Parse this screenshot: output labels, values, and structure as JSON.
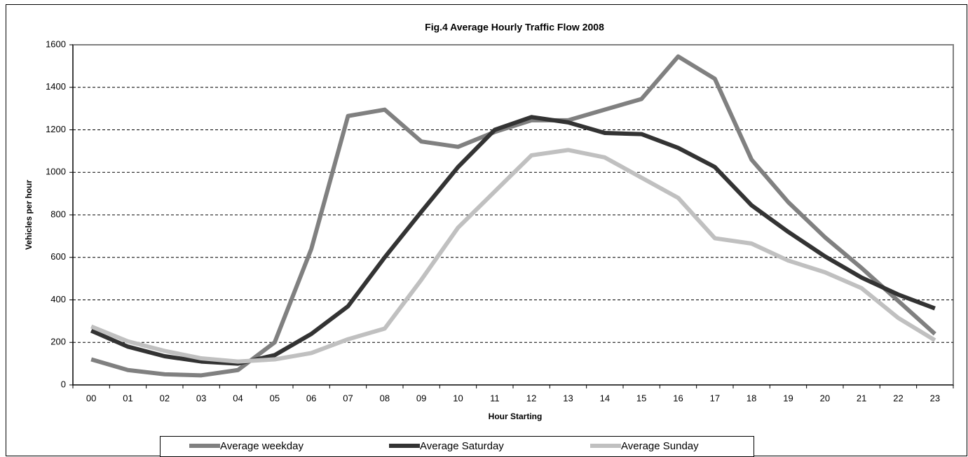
{
  "chart_data": {
    "type": "line",
    "title": "Fig.4 Average Hourly Traffic Flow 2008",
    "x_label": "Hour Starting",
    "y_label": "Vehicles per hour",
    "categories": [
      "00",
      "01",
      "02",
      "03",
      "04",
      "05",
      "06",
      "07",
      "08",
      "09",
      "10",
      "11",
      "12",
      "13",
      "14",
      "15",
      "16",
      "17",
      "18",
      "19",
      "20",
      "21",
      "22",
      "23"
    ],
    "series": [
      {
        "name": "Average weekday",
        "color": "#808080",
        "values": [
          120,
          70,
          50,
          45,
          70,
          200,
          640,
          1265,
          1295,
          1145,
          1120,
          1190,
          1245,
          1245,
          1295,
          1345,
          1545,
          1440,
          1060,
          860,
          695,
          550,
          395,
          240
        ]
      },
      {
        "name": "Average Saturday",
        "color": "#333333",
        "values": [
          255,
          180,
          135,
          110,
          100,
          140,
          240,
          370,
          600,
          815,
          1025,
          1200,
          1260,
          1235,
          1185,
          1180,
          1115,
          1025,
          845,
          720,
          605,
          505,
          425,
          360
        ]
      },
      {
        "name": "Average Sunday",
        "color": "#c0c0c0",
        "values": [
          275,
          205,
          160,
          125,
          110,
          120,
          150,
          215,
          265,
          495,
          740,
          910,
          1080,
          1105,
          1070,
          975,
          880,
          690,
          665,
          585,
          530,
          455,
          315,
          210
        ]
      }
    ],
    "ylim": [
      0,
      1600
    ],
    "yticks": [
      0,
      200,
      400,
      600,
      800,
      1000,
      1200,
      1400,
      1600
    ],
    "grid": true,
    "legend": "bottom"
  }
}
